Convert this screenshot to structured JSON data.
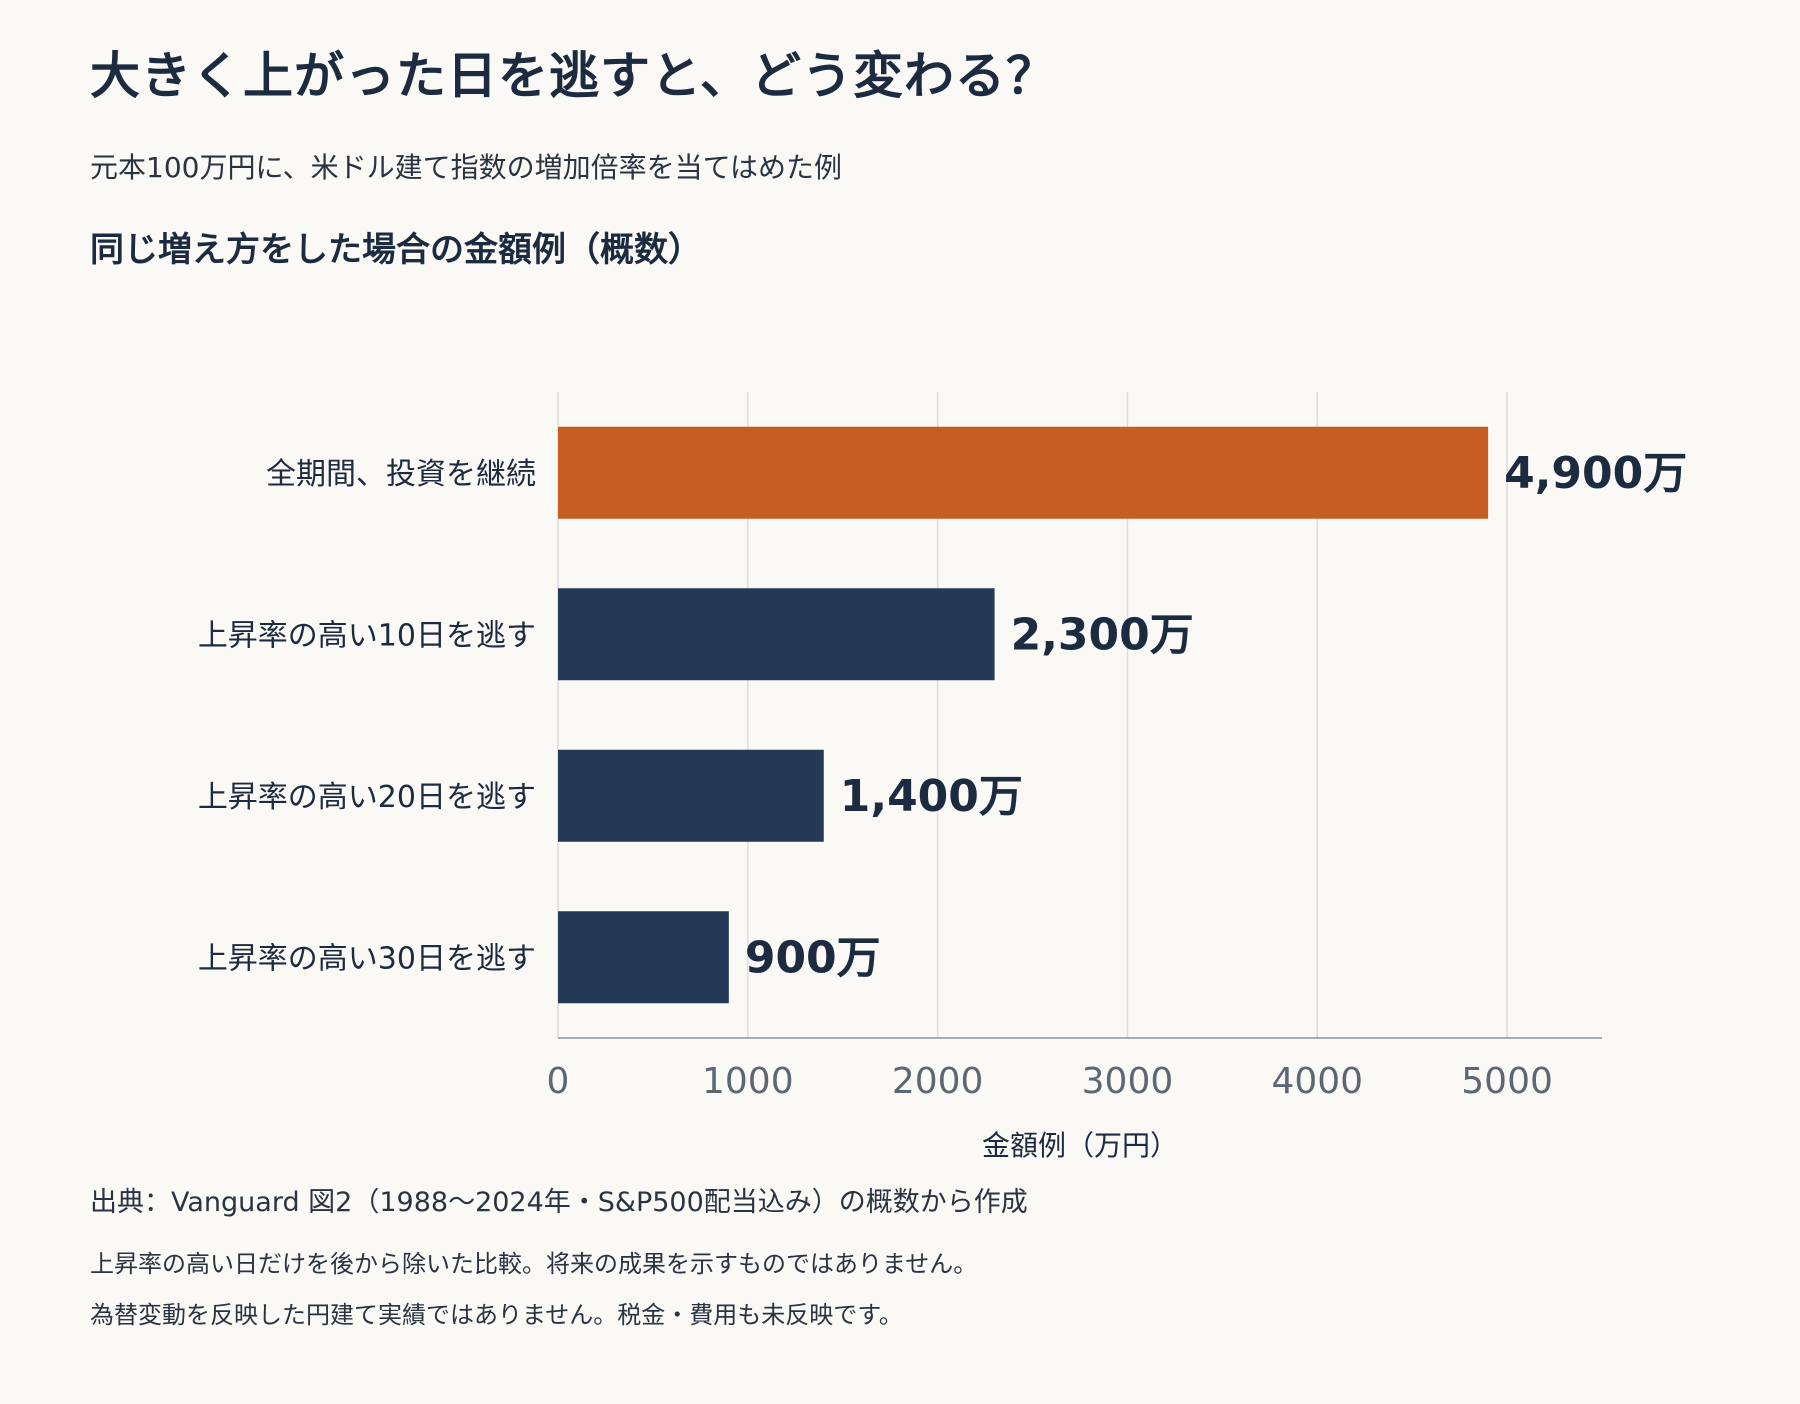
{
  "header": {
    "title": "大きく上がった日を逃すと、どう変わる？",
    "subtitle": "元本100万円に、米ドル建て指数の増加倍率を当てはめた例"
  },
  "chart_data": {
    "type": "bar",
    "orientation": "horizontal",
    "title": "同じ増え方をした場合の金額例（概数）",
    "categories": [
      "全期間、投資を継続",
      "上昇率の高い10日を逃す",
      "上昇率の高い20日を逃す",
      "上昇率の高い30日を逃す"
    ],
    "values": [
      4900,
      2300,
      1400,
      900
    ],
    "data_labels": [
      "4,900万",
      "2,300万",
      "1,400万",
      "900万"
    ],
    "bar_colors": [
      "#c65d21",
      "#243955",
      "#243955",
      "#243955"
    ],
    "xlabel": "金額例（万円）",
    "ylabel": "",
    "xlim": [
      0,
      5500
    ],
    "xticks": [
      0,
      1000,
      2000,
      3000,
      4000,
      5000
    ],
    "grid": "vertical"
  },
  "footer": {
    "source": "出典：Vanguard 図2（1988〜2024年・S&P500配当込み）の概数から作成",
    "note1": "上昇率の高い日だけを後から除いた比較。将来の成果を示すものではありません。",
    "note2": "為替変動を反映した円建て実績ではありません。税金・費用も未反映です。"
  },
  "colors": {
    "background": "#fbf9f6",
    "text": "#1c2b3f",
    "grid": "#dcdcdc",
    "axis": "#8a96a3",
    "tick_text": "#5c6773"
  }
}
